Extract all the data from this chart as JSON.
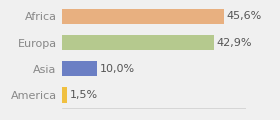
{
  "categories": [
    "America",
    "Asia",
    "Europa",
    "Africa"
  ],
  "values": [
    1.5,
    10.0,
    42.9,
    45.6
  ],
  "labels": [
    "1,5%",
    "10,0%",
    "42,9%",
    "45,6%"
  ],
  "bar_colors": [
    "#f0c040",
    "#6b7fc4",
    "#b5c98e",
    "#e8b080"
  ],
  "background_color": "#f0f0f0",
  "xlim": [
    0,
    52
  ],
  "bar_height": 0.6,
  "label_fontsize": 8,
  "tick_fontsize": 8,
  "tick_color": "#888888"
}
